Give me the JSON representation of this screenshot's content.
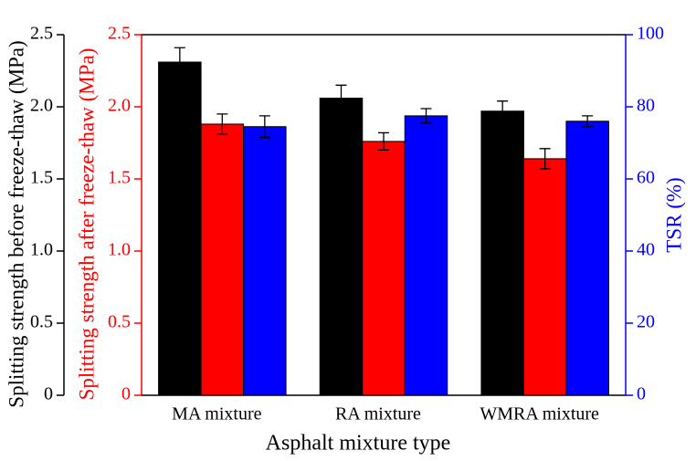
{
  "chart_data": {
    "type": "bar",
    "xlabel": "Asphalt mixture type",
    "categories": [
      "MA mixture",
      "RA mixture",
      "WMRA mixture"
    ],
    "ylabel": "Splitting strength before freeze-thaw (MPa)",
    "ylim": [
      0,
      2.5
    ],
    "yticks": [
      0,
      0.5,
      {
        "value": 1.0,
        "label": "1.0"
      },
      1.5,
      {
        "value": 2.0,
        "label": "2.0"
      },
      2.5
    ],
    "y3label": "Splitting strength after freeze-thaw (MPa)",
    "y3lim": [
      0,
      2.5
    ],
    "y3ticks": [
      0,
      0.5,
      {
        "value": 1.0,
        "label": "1.0"
      },
      1.5,
      {
        "value": 2.0,
        "label": "2.0"
      },
      2.5
    ],
    "y2label": "TSR (%)",
    "y2lim": [
      0,
      100
    ],
    "y2ticks": [
      0,
      20,
      40,
      60,
      80,
      100
    ],
    "series": [
      {
        "name": "Splitting strength before freeze-thaw",
        "color": "#000000",
        "axis": "y",
        "values": [
          2.31,
          2.06,
          1.97
        ],
        "errors": [
          0.1,
          0.09,
          0.07
        ]
      },
      {
        "name": "Splitting strength after freeze-thaw",
        "color": "#ff0000",
        "axis": "y3",
        "values": [
          1.88,
          1.76,
          1.64
        ],
        "errors": [
          0.07,
          0.06,
          0.07
        ]
      },
      {
        "name": "TSR",
        "color": "#0000ff",
        "axis": "y2",
        "values": [
          74.5,
          77.5,
          76
        ],
        "errors": [
          3,
          2,
          1.5
        ]
      }
    ]
  }
}
